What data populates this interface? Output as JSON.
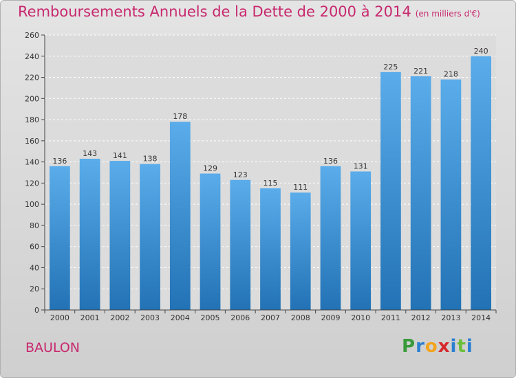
{
  "header": {
    "title": "Remboursements Annuels de la Dette de 2000 à 2014",
    "unit": "(en milliers d'€)"
  },
  "footer": {
    "place": "BAULON",
    "logo": "Proxiti"
  },
  "colors": {
    "accent": "#c8286e",
    "bar_top": "#5aacea",
    "bar_bottom": "#2272b5",
    "grid": "#ffffff"
  },
  "chart_data": {
    "type": "bar",
    "title": "Remboursements Annuels de la Dette de 2000 à 2014",
    "subtitle": "(en milliers d'€)",
    "xlabel": "",
    "ylabel": "",
    "categories": [
      "2000",
      "2001",
      "2002",
      "2003",
      "2004",
      "2005",
      "2006",
      "2007",
      "2008",
      "2009",
      "2010",
      "2011",
      "2012",
      "2013",
      "2014"
    ],
    "values": [
      136,
      143,
      141,
      138,
      178,
      129,
      123,
      115,
      111,
      136,
      131,
      225,
      221,
      218,
      240
    ],
    "ylim": [
      0,
      260
    ],
    "yticks": [
      0,
      20,
      40,
      60,
      80,
      100,
      120,
      140,
      160,
      180,
      200,
      220,
      240,
      260
    ],
    "grid": true,
    "data_labels": true
  }
}
